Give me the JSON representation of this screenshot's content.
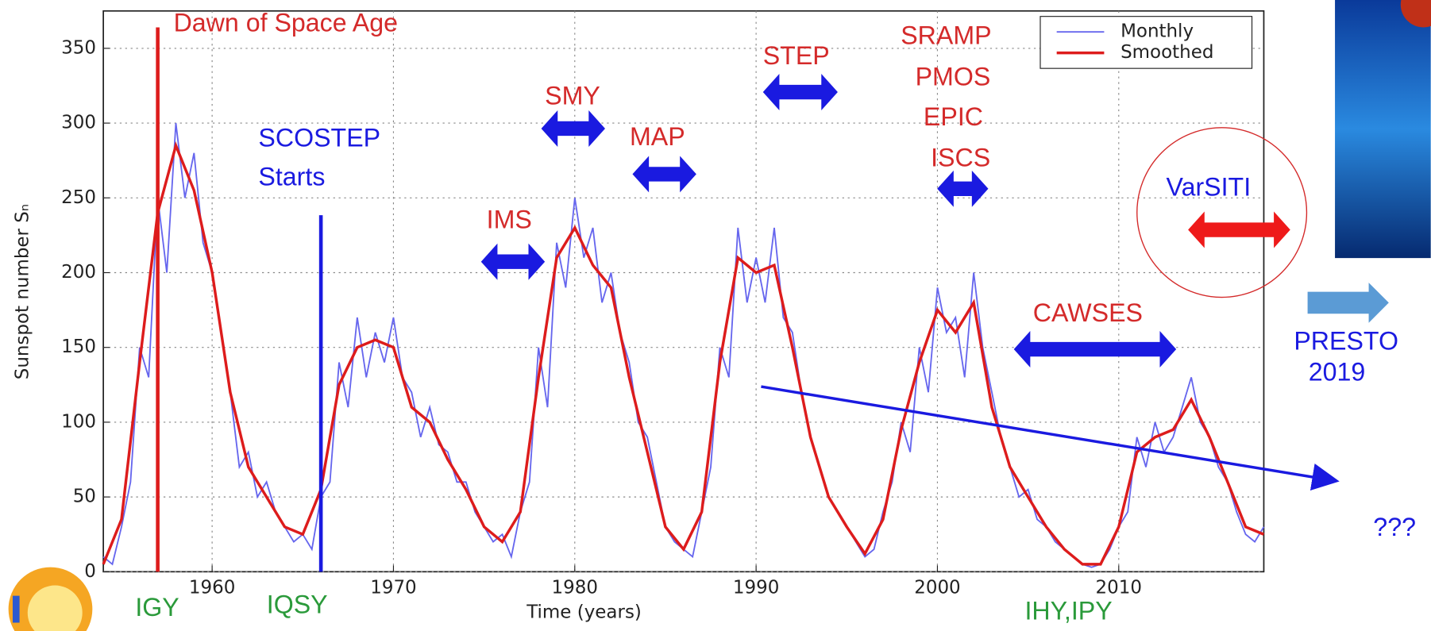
{
  "chart_data": {
    "type": "line",
    "x_label": "Time (years)",
    "y_label": "Sunspot number Sₙ",
    "xlim": [
      1954,
      2018
    ],
    "xticks": [
      1960,
      1970,
      1980,
      1990,
      2000,
      2010
    ],
    "ylim": [
      0,
      375
    ],
    "yticks": [
      0,
      50,
      100,
      150,
      200,
      250,
      300,
      350
    ],
    "grid": true,
    "legend": "upper right",
    "series": [
      {
        "name": "Monthly",
        "color": "#6666ee",
        "x": [
          1954,
          1954.5,
          1955,
          1955.5,
          1956,
          1956.5,
          1957,
          1957.5,
          1958,
          1958.5,
          1959,
          1959.5,
          1960,
          1960.5,
          1961,
          1961.5,
          1962,
          1962.5,
          1963,
          1963.5,
          1964,
          1964.5,
          1965,
          1965.5,
          1966,
          1966.5,
          1967,
          1967.5,
          1968,
          1968.5,
          1969,
          1969.5,
          1970,
          1970.5,
          1971,
          1971.5,
          1972,
          1972.5,
          1973,
          1973.5,
          1974,
          1974.5,
          1975,
          1975.5,
          1976,
          1976.5,
          1977,
          1977.5,
          1978,
          1978.5,
          1979,
          1979.5,
          1980,
          1980.5,
          1981,
          1981.5,
          1982,
          1982.5,
          1983,
          1983.5,
          1984,
          1984.5,
          1985,
          1985.5,
          1986,
          1986.5,
          1987,
          1987.5,
          1988,
          1988.5,
          1989,
          1989.5,
          1990,
          1990.5,
          1991,
          1991.5,
          1992,
          1992.5,
          1993,
          1993.5,
          1994,
          1994.5,
          1995,
          1995.5,
          1996,
          1996.5,
          1997,
          1997.5,
          1998,
          1998.5,
          1999,
          1999.5,
          2000,
          2000.5,
          2001,
          2001.5,
          2002,
          2002.5,
          2003,
          2003.5,
          2004,
          2004.5,
          2005,
          2005.5,
          2006,
          2006.5,
          2007,
          2007.5,
          2008,
          2008.5,
          2009,
          2009.5,
          2010,
          2010.5,
          2011,
          2011.5,
          2012,
          2012.5,
          2013,
          2013.5,
          2014,
          2014.5,
          2015,
          2015.5,
          2016,
          2016.5,
          2017,
          2017.5,
          2018
        ],
        "values": [
          10,
          5,
          30,
          60,
          150,
          130,
          250,
          200,
          300,
          250,
          280,
          220,
          200,
          160,
          120,
          70,
          80,
          50,
          60,
          40,
          30,
          20,
          25,
          15,
          50,
          60,
          140,
          110,
          170,
          130,
          160,
          140,
          170,
          130,
          120,
          90,
          110,
          85,
          80,
          60,
          60,
          40,
          30,
          20,
          25,
          10,
          40,
          60,
          150,
          110,
          220,
          190,
          250,
          210,
          230,
          180,
          200,
          160,
          140,
          100,
          90,
          60,
          30,
          20,
          15,
          10,
          40,
          70,
          150,
          130,
          230,
          180,
          210,
          180,
          230,
          170,
          160,
          120,
          90,
          70,
          50,
          40,
          30,
          20,
          10,
          15,
          40,
          60,
          100,
          80,
          150,
          120,
          190,
          160,
          170,
          130,
          200,
          150,
          120,
          90,
          70,
          50,
          55,
          35,
          30,
          20,
          15,
          10,
          5,
          3,
          5,
          15,
          30,
          40,
          90,
          70,
          100,
          80,
          90,
          110,
          130,
          100,
          90,
          70,
          60,
          40,
          25,
          20,
          30
        ]
      },
      {
        "name": "Smoothed",
        "color": "#dd1c1c",
        "x": [
          1954,
          1955,
          1956,
          1957,
          1958,
          1959,
          1960,
          1961,
          1962,
          1963,
          1964,
          1965,
          1966,
          1967,
          1968,
          1969,
          1970,
          1971,
          1972,
          1973,
          1974,
          1975,
          1976,
          1977,
          1978,
          1979,
          1980,
          1981,
          1982,
          1983,
          1984,
          1985,
          1986,
          1987,
          1988,
          1989,
          1990,
          1991,
          1992,
          1993,
          1994,
          1995,
          1996,
          1997,
          1998,
          1999,
          2000,
          2001,
          2002,
          2003,
          2004,
          2005,
          2006,
          2007,
          2008,
          2009,
          2010,
          2011,
          2012,
          2013,
          2014,
          2015,
          2016,
          2017,
          2018
        ],
        "values": [
          5,
          35,
          140,
          240,
          285,
          255,
          200,
          120,
          70,
          50,
          30,
          25,
          55,
          125,
          150,
          155,
          150,
          110,
          100,
          75,
          55,
          30,
          20,
          40,
          130,
          210,
          230,
          205,
          190,
          130,
          80,
          30,
          15,
          40,
          140,
          210,
          200,
          205,
          150,
          90,
          50,
          30,
          12,
          35,
          95,
          140,
          175,
          160,
          180,
          110,
          70,
          50,
          30,
          15,
          5,
          5,
          30,
          80,
          90,
          95,
          115,
          90,
          60,
          30,
          25
        ]
      }
    ],
    "vlines": [
      1957,
      1966
    ],
    "annotations": [
      "Dawn of Space Age",
      "SCOSTEP",
      "Starts",
      "IMS",
      "SMY",
      "MAP",
      "STEP",
      "SRAMP",
      "PMOS",
      "EPIC",
      "ISCS",
      "VarSITI",
      "CAWSES",
      "PRESTO",
      "2019",
      "???",
      "IGY",
      "IQSY",
      "IHY,IPY"
    ]
  }
}
